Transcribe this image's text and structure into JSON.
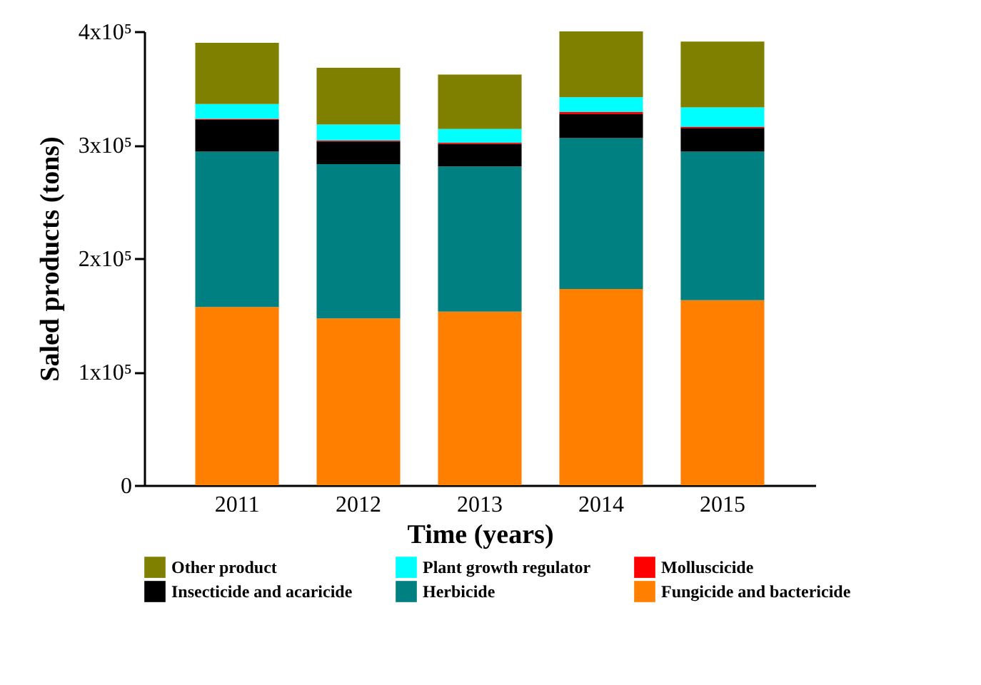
{
  "chart_data": {
    "type": "bar",
    "stacked": true,
    "xlabel": "Time (years)",
    "ylabel": "Saled products (tons)",
    "categories": [
      "2011",
      "2012",
      "2013",
      "2014",
      "2015"
    ],
    "series": [
      {
        "name": "Fungicide and bactericide",
        "color": "#ff8000",
        "values": [
          157000,
          147000,
          153000,
          173000,
          163000
        ]
      },
      {
        "name": "Herbicide",
        "color": "#008080",
        "values": [
          137000,
          136000,
          128000,
          133000,
          131000
        ]
      },
      {
        "name": "Insecticide and acaricide",
        "color": "#000000",
        "values": [
          28000,
          20000,
          20000,
          21000,
          21000
        ]
      },
      {
        "name": "Molluscicide",
        "color": "#ff0000",
        "values": [
          1000,
          1000,
          1000,
          2000,
          1000
        ]
      },
      {
        "name": "Plant growth regulator",
        "color": "#00ffff",
        "values": [
          13000,
          14000,
          12000,
          13000,
          17000
        ]
      },
      {
        "name": "Other product",
        "color": "#808000",
        "values": [
          54000,
          50000,
          48000,
          58000,
          58000
        ]
      }
    ],
    "ylim": [
      0,
      400000
    ],
    "yticks": [
      0,
      {
        "value": 100000,
        "label": "1x10⁵"
      },
      {
        "value": 200000,
        "label": "2x10⁵"
      },
      {
        "value": 300000,
        "label": "3x10⁵"
      },
      {
        "value": 400000,
        "label": "4x10⁵"
      }
    ],
    "grid": false,
    "legend": "bottom"
  }
}
